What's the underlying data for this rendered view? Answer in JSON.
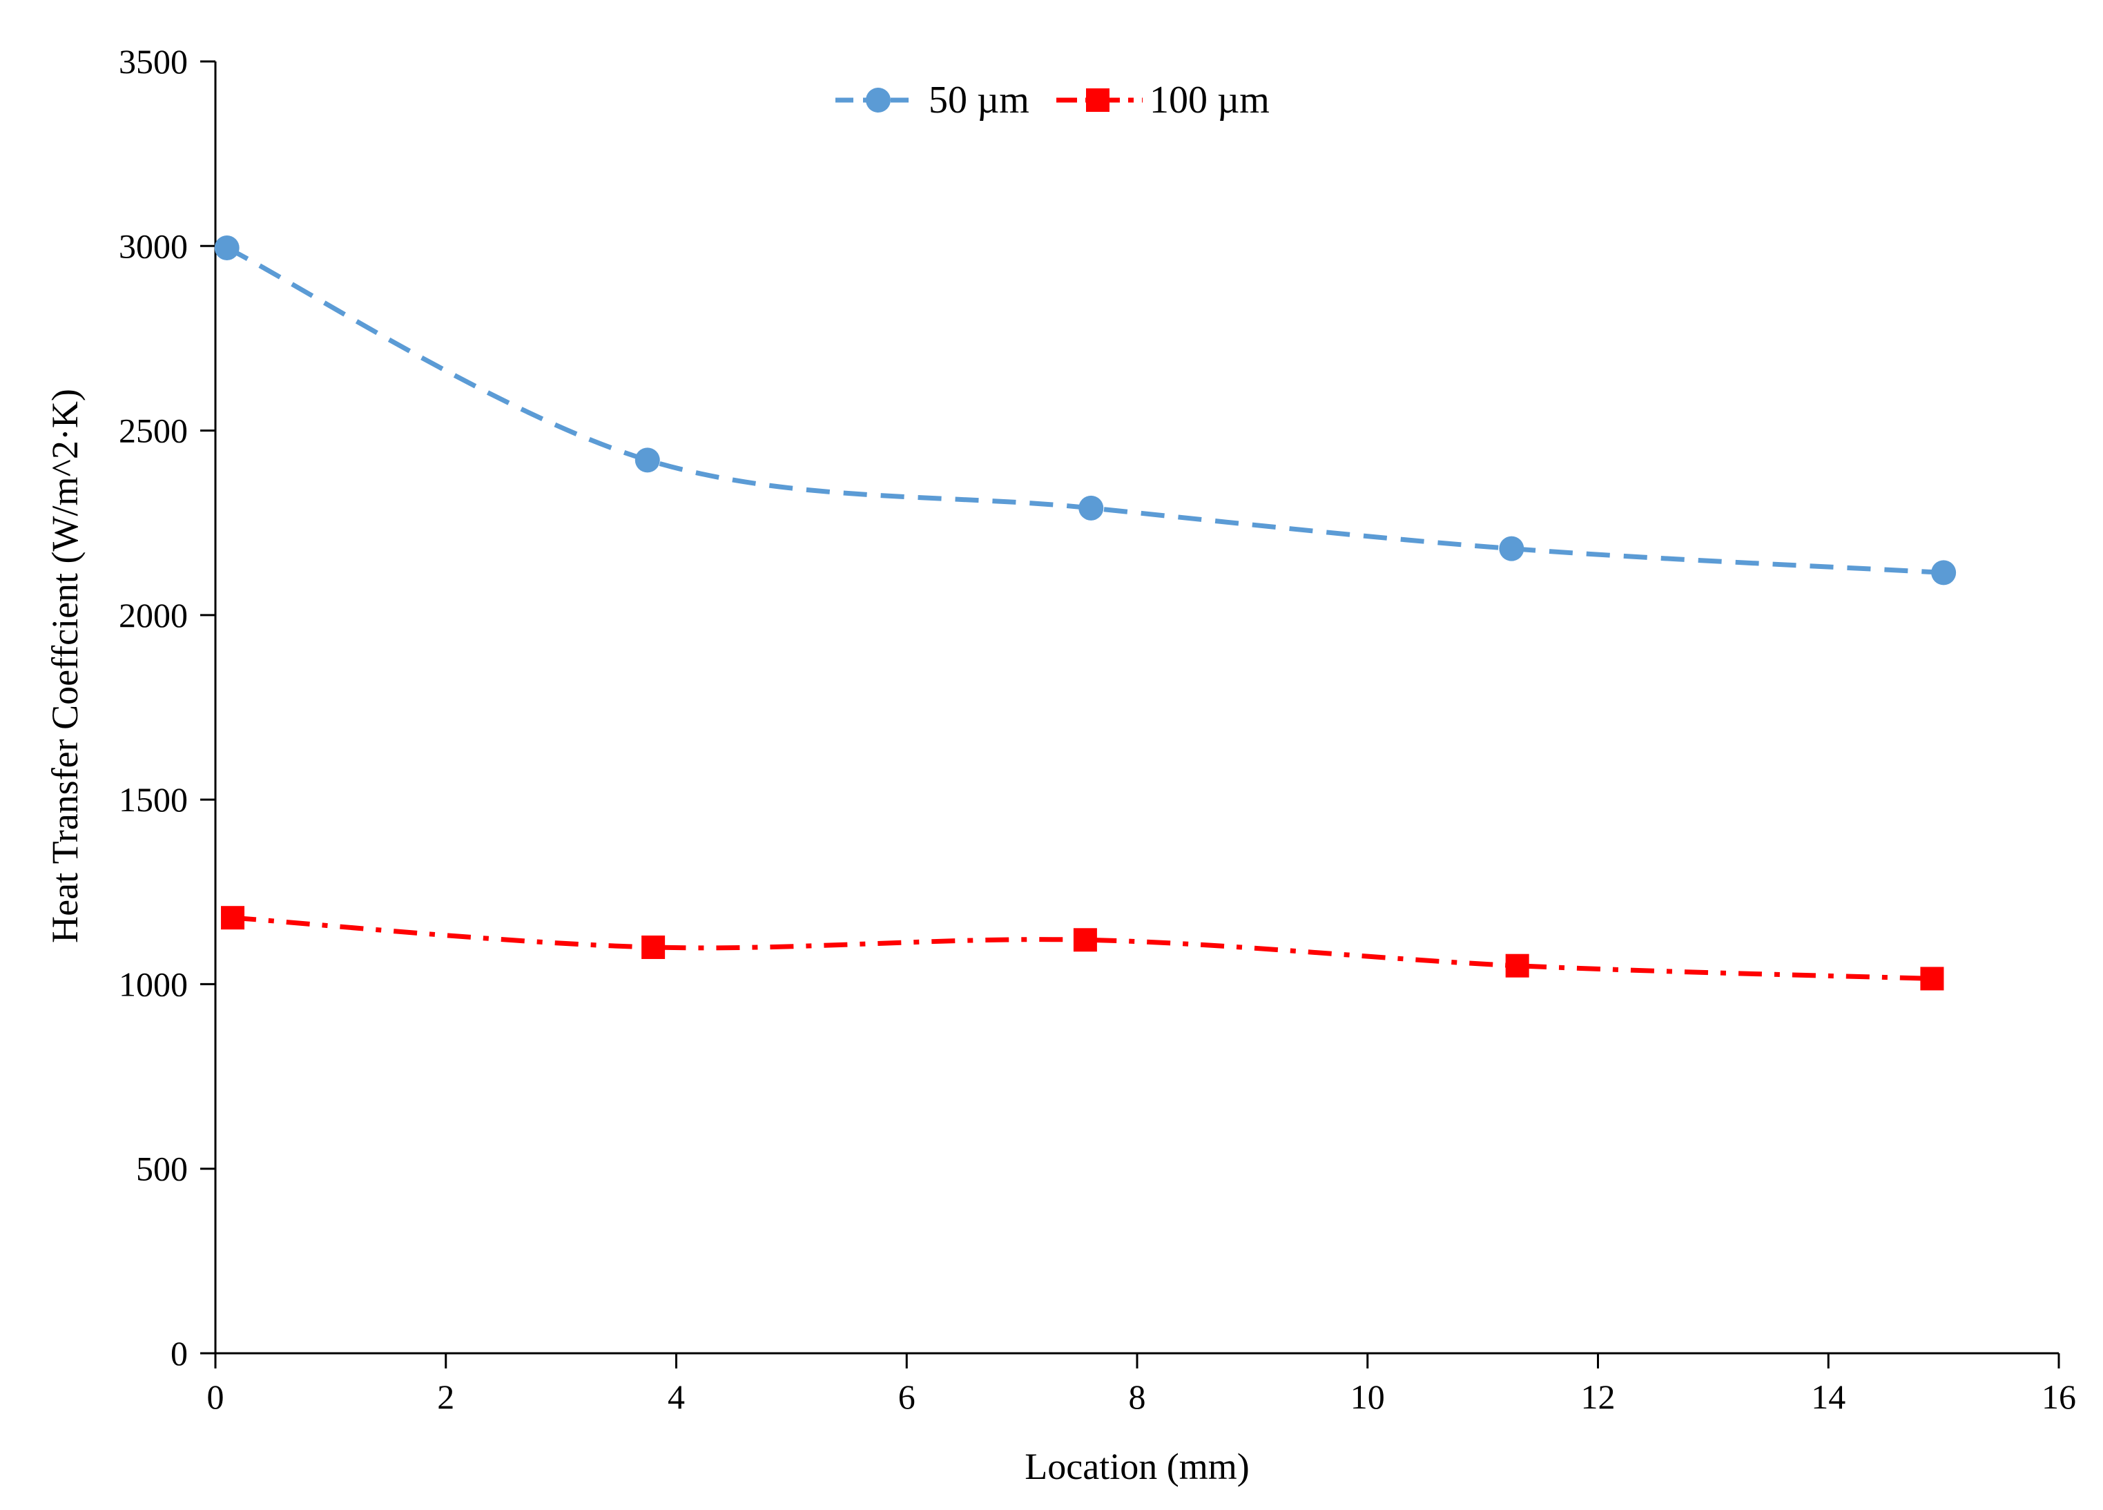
{
  "chart_data": {
    "type": "line",
    "title": "",
    "xlabel": "Location (mm)",
    "ylabel": "Heat Transfer Coeffcient (W/m^2·K)",
    "xlim": [
      0,
      16
    ],
    "ylim": [
      0,
      3500
    ],
    "xticks": [
      0,
      2,
      4,
      6,
      8,
      10,
      12,
      14,
      16
    ],
    "yticks": [
      0,
      500,
      1000,
      1500,
      2000,
      2500,
      3000,
      3500
    ],
    "grid": false,
    "legend_position": "top-center",
    "series": [
      {
        "name": "50 µm",
        "color": "#5b9bd5",
        "marker": "circle",
        "line_style": "dashed",
        "x": [
          0.1,
          3.75,
          7.6,
          11.25,
          15.0
        ],
        "y": [
          2995,
          2420,
          2290,
          2180,
          2115
        ]
      },
      {
        "name": "100 µm",
        "color": "#ff0000",
        "marker": "square",
        "line_style": "dash-dot",
        "x": [
          0.15,
          3.8,
          7.55,
          11.3,
          14.9
        ],
        "y": [
          1180,
          1100,
          1120,
          1050,
          1015
        ]
      }
    ]
  }
}
